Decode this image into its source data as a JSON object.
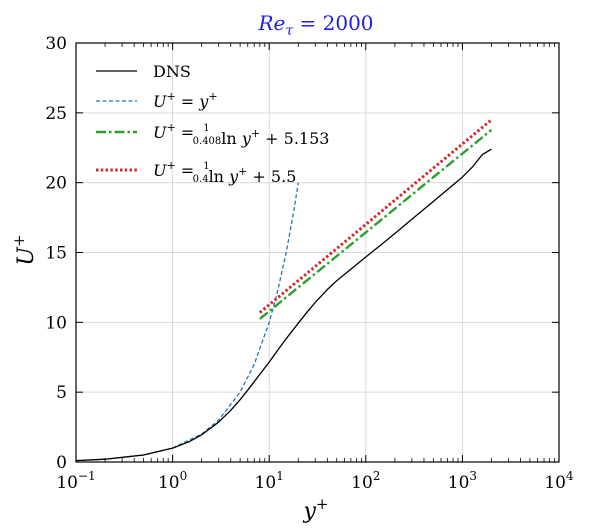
{
  "chart_data": {
    "type": "line",
    "title": "Re_τ = 2000",
    "title_color": "#1f1fe0",
    "xlabel": "y⁺",
    "ylabel": "U⁺",
    "x_scale": "log",
    "xlim": [
      0.1,
      10000
    ],
    "ylim": [
      0,
      30
    ],
    "grid": true,
    "legend_position": "top-left",
    "x_ticks": [
      {
        "value": 0.1,
        "label_base": "10",
        "label_exp": "−1"
      },
      {
        "value": 1,
        "label_base": "10",
        "label_exp": "0"
      },
      {
        "value": 10,
        "label_base": "10",
        "label_exp": "1"
      },
      {
        "value": 100,
        "label_base": "10",
        "label_exp": "2"
      },
      {
        "value": 1000,
        "label_base": "10",
        "label_exp": "3"
      },
      {
        "value": 10000,
        "label_base": "10",
        "label_exp": "4"
      }
    ],
    "y_ticks": [
      0,
      5,
      10,
      15,
      20,
      25,
      30
    ],
    "series": [
      {
        "name": "DNS",
        "color": "#000000",
        "style": "solid",
        "x": [
          0.1,
          0.2,
          0.5,
          1,
          1.5,
          2,
          3,
          4,
          5,
          6,
          7,
          8,
          10,
          12,
          15,
          20,
          25,
          30,
          40,
          50,
          70,
          100,
          150,
          200,
          300,
          500,
          700,
          1000,
          1300,
          1600,
          2000
        ],
        "y": [
          0.1,
          0.2,
          0.5,
          0.99,
          1.47,
          1.95,
          2.86,
          3.7,
          4.46,
          5.15,
          5.75,
          6.28,
          7.15,
          7.92,
          8.83,
          9.94,
          10.78,
          11.43,
          12.35,
          12.98,
          13.8,
          14.68,
          15.65,
          16.36,
          17.38,
          18.65,
          19.5,
          20.4,
          21.2,
          22.0,
          22.4
        ]
      },
      {
        "name": "U⁺ = y⁺",
        "color": "#1f77b4",
        "style": "dashed",
        "x": [
          0.1,
          0.2,
          0.5,
          1,
          2,
          3,
          5,
          7,
          10,
          12,
          15,
          18,
          20
        ],
        "y": [
          0.1,
          0.2,
          0.5,
          1,
          2,
          3,
          5,
          7,
          10,
          12,
          15,
          18,
          20
        ]
      },
      {
        "name": "U⁺ = (1/0.408) ln y⁺ + 5.153",
        "color": "#2ca02c",
        "style": "dashdot",
        "x": [
          8,
          20,
          50,
          100,
          200,
          500,
          1000,
          2000
        ],
        "y": [
          10.25,
          12.5,
          14.74,
          16.44,
          18.14,
          20.39,
          22.08,
          23.78
        ]
      },
      {
        "name": "U⁺ = (1/0.4) ln y⁺ + 5.5",
        "color": "#d62728",
        "style": "dotted",
        "x": [
          8,
          20,
          50,
          100,
          200,
          500,
          1000,
          2000
        ],
        "y": [
          10.7,
          12.99,
          15.28,
          17.01,
          18.75,
          21.04,
          22.77,
          24.5
        ]
      }
    ],
    "legend": [
      {
        "key": "DNS",
        "parts": [
          {
            "t": "DNS"
          }
        ]
      },
      {
        "key": "visc",
        "parts": [
          {
            "t": "U",
            "i": true
          },
          {
            "t": "+",
            "sup": true
          },
          {
            "t": " = "
          },
          {
            "t": "y",
            "i": true
          },
          {
            "t": "+",
            "sup": true
          }
        ]
      },
      {
        "key": "log1",
        "parts": [
          {
            "t": "U",
            "i": true
          },
          {
            "t": "+",
            "sup": true
          },
          {
            "t": " = "
          },
          {
            "frac": [
              "1",
              "0.408"
            ]
          },
          {
            "t": "ln "
          },
          {
            "t": "y",
            "i": true
          },
          {
            "t": "+",
            "sup": true
          },
          {
            "t": " + 5.153"
          }
        ]
      },
      {
        "key": "log2",
        "parts": [
          {
            "t": "U",
            "i": true
          },
          {
            "t": "+",
            "sup": true
          },
          {
            "t": " = "
          },
          {
            "frac": [
              "1",
              "0.4"
            ]
          },
          {
            "t": "ln "
          },
          {
            "t": "y",
            "i": true
          },
          {
            "t": "+",
            "sup": true
          },
          {
            "t": " + 5.5"
          }
        ]
      }
    ]
  }
}
